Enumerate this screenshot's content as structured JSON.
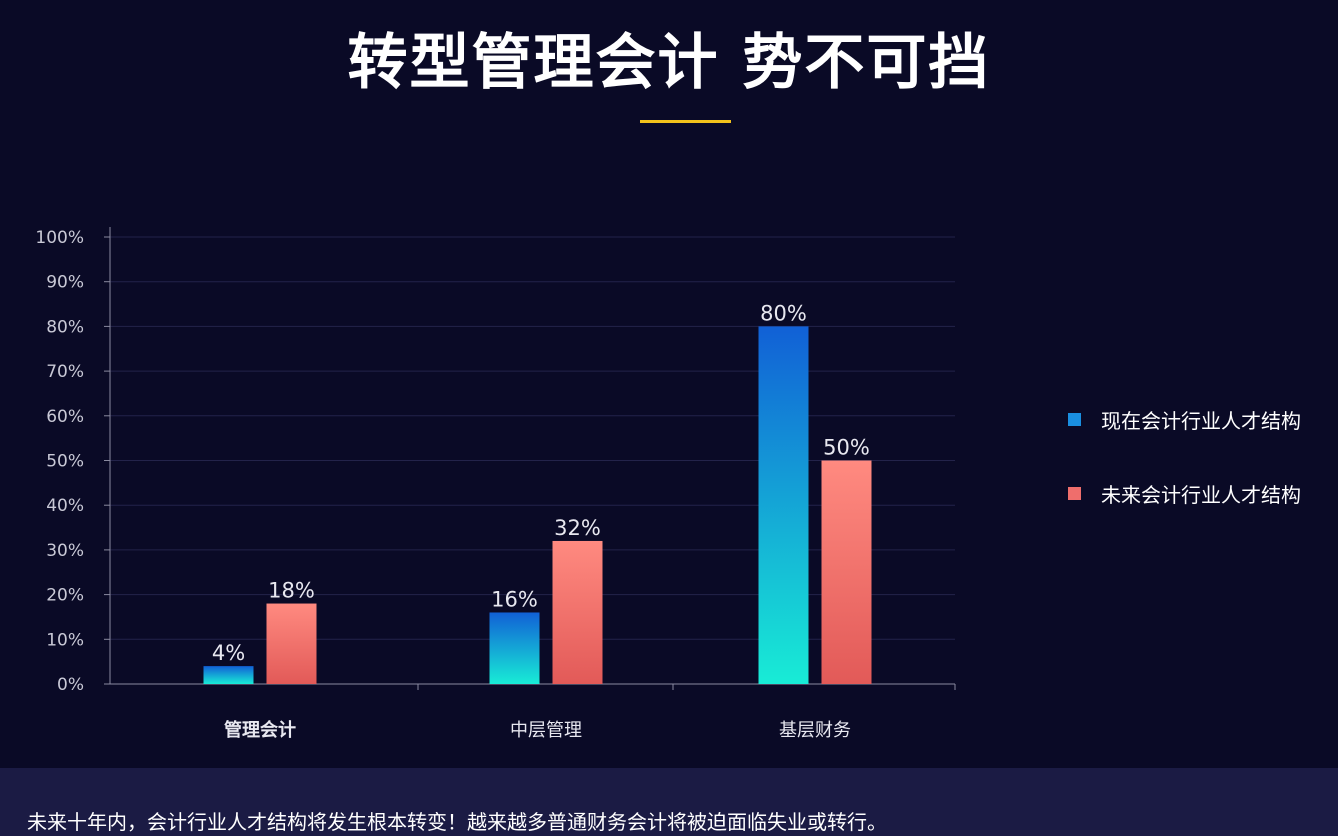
{
  "title": "转型管理会计 势不可挡",
  "colors": {
    "background": "#0a0a26",
    "accent_underline": "#f2c21b",
    "series_current_top": "#1160d6",
    "series_current_bottom": "#18ecd6",
    "series_future_top": "#ff8a80",
    "series_future_bottom": "#e25a58",
    "footer_background": "#1b1b44"
  },
  "chart_data": {
    "type": "bar",
    "categories": [
      "管理会计",
      "中层管理",
      "基层财务"
    ],
    "series": [
      {
        "name": "现在会计行业人才结构",
        "values": [
          4,
          16,
          80
        ]
      },
      {
        "name": "未来会计行业人才结构",
        "values": [
          18,
          32,
          50
        ]
      }
    ],
    "data_labels": [
      [
        "4%",
        "16%",
        "80%"
      ],
      [
        "18%",
        "32%",
        "50%"
      ]
    ],
    "y_ticks": [
      "0%",
      "10%",
      "20%",
      "30%",
      "40%",
      "50%",
      "60%",
      "70%",
      "80%",
      "90%",
      "100%"
    ],
    "ylim": [
      0,
      100
    ],
    "grid": true,
    "legend_position": "right"
  },
  "legend": {
    "items": [
      {
        "label": "现在会计行业人才结构",
        "color": "#1a8fe0"
      },
      {
        "label": "未来会计行业人才结构",
        "color": "#ef6e6c"
      }
    ]
  },
  "footer": {
    "text": "未来十年内，会计行业人才结构将发生根本转变！越来越多普通财务会计将被迫面临失业或转行。"
  }
}
